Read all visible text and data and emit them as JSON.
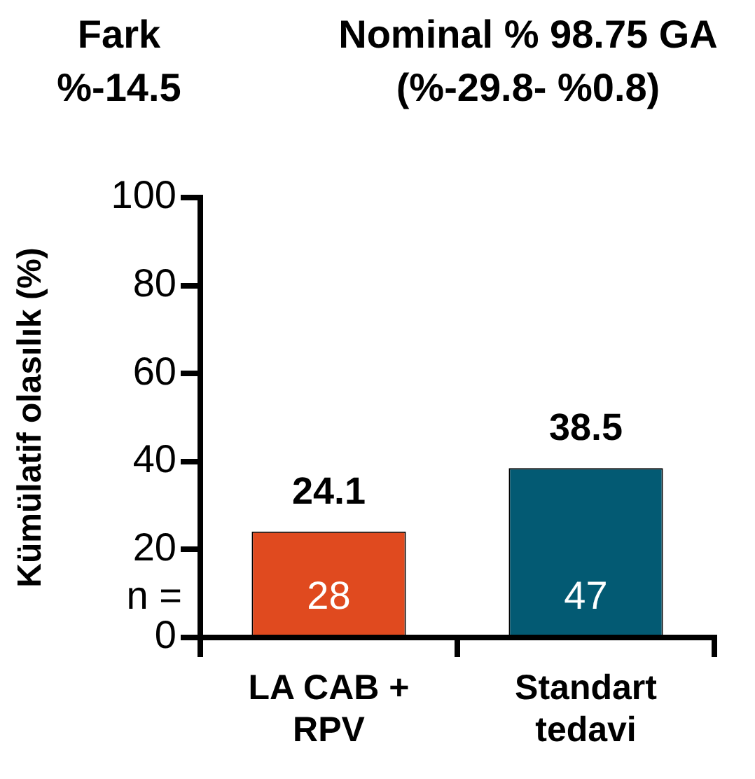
{
  "chart_data": {
    "type": "bar",
    "ylabel": "Kümülatif olasılık (%)",
    "categories": [
      "LA CAB + RPV",
      "Standart tedavi"
    ],
    "values": [
      24.1,
      38.5
    ],
    "colors": [
      "#e04a1f",
      "#035a73"
    ],
    "ylim": [
      0,
      100
    ],
    "yticks": [
      0,
      20,
      40,
      60,
      80,
      100
    ],
    "data_labels": true,
    "annotations": [
      "Fark %-14.5",
      "Nominal % 98.75 GA (%-29.8- %0.8)",
      "n =",
      "28",
      "47"
    ]
  }
}
